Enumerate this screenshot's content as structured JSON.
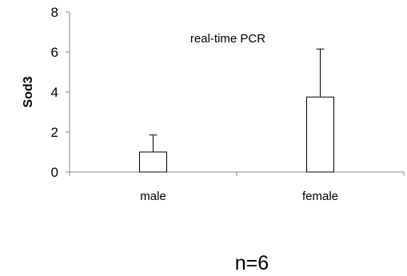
{
  "chart_data": {
    "type": "bar",
    "categories": [
      "male",
      "female"
    ],
    "series": [
      {
        "values": [
          1.0,
          3.75
        ],
        "errors": [
          0.85,
          2.4
        ]
      }
    ],
    "title": "",
    "xlabel": "",
    "ylabel": "Sod3",
    "ylim": [
      0,
      8
    ],
    "yticks": [
      0,
      2,
      4,
      6,
      8
    ],
    "grid": false,
    "annotations": [
      "real-time PCR",
      "n=6"
    ],
    "bar_fill": "#ffffff",
    "bar_stroke": "#000000",
    "axis_color": "#888888"
  }
}
